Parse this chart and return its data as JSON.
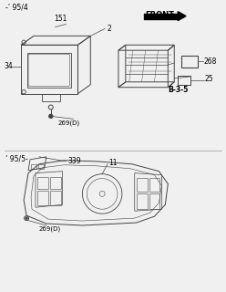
{
  "bg_color": "#f0f0f0",
  "line_color": "#444444",
  "title1": "-’ 95/4",
  "title2": "’ 95/5-",
  "label_2": "2",
  "label_151": "151",
  "label_34": "34",
  "label_269D_1": "269(D)",
  "label_268": "268",
  "label_25": "25",
  "label_B35": "B-3-5",
  "label_339": "339",
  "label_11": "11",
  "label_269D_2": "269(D)",
  "label_FRONT": "FRONT"
}
